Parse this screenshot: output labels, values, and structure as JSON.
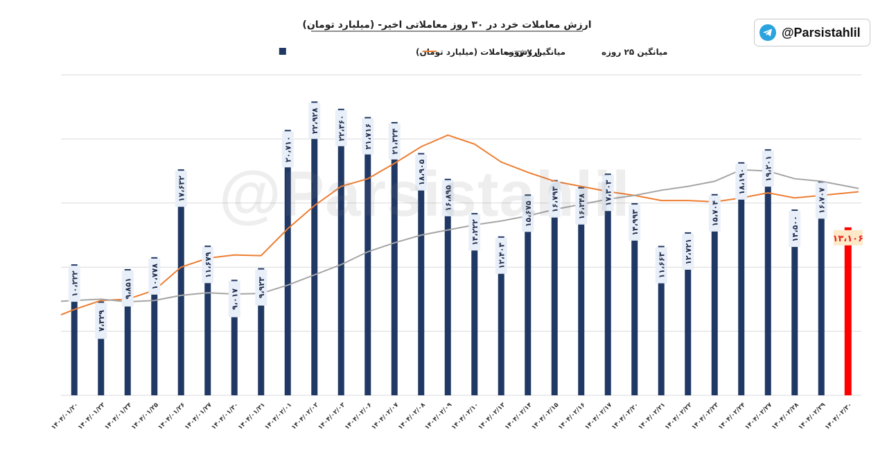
{
  "chart_data": {
    "type": "bar",
    "title": "ارزش معاملات خرد در ۳۰ روز معاملاتی اخیر- (میلیارد تومان)",
    "legend_position": "top-center",
    "grid": true,
    "ylim": [
      0,
      25000
    ],
    "categories": [
      "۱۴۰۴/۰۱/۲۰",
      "۱۴۰۴/۰۱/۲۳",
      "۱۴۰۴/۰۱/۲۴",
      "۱۴۰۴/۰۱/۲۵",
      "۱۴۰۴/۰۱/۲۶",
      "۱۴۰۴/۰۱/۲۷",
      "۱۴۰۴/۰۱/۳۰",
      "۱۴۰۴/۰۱/۳۱",
      "۱۴۰۴/۰۲/۰۱",
      "۱۴۰۴/۰۲/۰۲",
      "۱۴۰۴/۰۲/۰۳",
      "۱۴۰۴/۰۲/۰۶",
      "۱۴۰۴/۰۲/۰۷",
      "۱۴۰۴/۰۲/۰۸",
      "۱۴۰۴/۰۲/۰۹",
      "۱۴۰۴/۰۲/۱۰",
      "۱۴۰۴/۰۲/۱۳",
      "۱۴۰۴/۰۲/۱۴",
      "۱۴۰۴/۰۲/۱۵",
      "۱۴۰۴/۰۲/۱۶",
      "۱۴۰۴/۰۲/۱۷",
      "۱۴۰۴/۰۲/۲۰",
      "۱۴۰۴/۰۲/۲۱",
      "۱۴۰۴/۰۲/۲۲",
      "۱۴۰۴/۰۲/۲۳",
      "۱۴۰۴/۰۲/۲۴",
      "۱۴۰۴/۰۲/۲۷",
      "۱۴۰۴/۰۲/۲۸",
      "۱۴۰۴/۰۲/۲۹",
      "۱۴۰۴/۰۲/۳۰"
    ],
    "series": [
      {
        "name": "ارزش معاملات (میلیارد تومان)",
        "kind": "bar",
        "color": "#203864",
        "values": [
          10222,
          7329,
          9851,
          10778,
          17632,
          11679,
          9017,
          9923,
          20710,
          22928,
          22360,
          21716,
          21324,
          18905,
          16895,
          14222,
          12403,
          15675,
          16793,
          16248,
          17303,
          14993,
          11663,
          12721,
          15704,
          18190,
          19201,
          14500,
          16707,
          13106
        ],
        "labels": [
          "۱۰،۲۲۲",
          "۷،۳۲۹",
          "۹،۸۵۱",
          "۱۰،۷۷۸",
          "۱۷،۶۳۲",
          "۱۱،۶۷۹",
          "۹،۰۱۷",
          "۹،۹۲۳",
          "۲۰،۷۱۰",
          "۲۲،۹۲۸",
          "۲۲،۳۶۰",
          "۲۱،۷۱۶",
          "۲۱،۳۲۴",
          "۱۸،۹۰۵",
          "۱۶،۸۹۵",
          "۱۴،۲۲۲",
          "۱۲،۴۰۳",
          "۱۵،۶۷۵",
          "۱۶،۷۹۳",
          "۱۶،۲۴۸",
          "۱۷،۳۰۳",
          "۱۴،۹۹۳",
          "۱۱،۶۶۳",
          "۱۲،۷۲۱",
          "۱۵،۷۰۴",
          "۱۸،۱۹۰",
          "۱۹،۲۰۱",
          "۱۴،۵۰۰",
          "۱۶،۷۰۷",
          "۱۳،۱۰۶"
        ],
        "highlight_last": {
          "color": "#ff0000",
          "label_color": "#e8261e",
          "label_bg": "#fde9c7"
        }
      },
      {
        "name": "میانگین ۷ روزه",
        "kind": "line",
        "color": "#ed7d31",
        "values": [
          6700,
          7400,
          7500,
          8200,
          10000,
          10700,
          10950,
          10900,
          13000,
          14800,
          16300,
          16900,
          18100,
          19400,
          20300,
          19600,
          18200,
          17400,
          16700,
          16300,
          15900,
          15600,
          15200,
          15200,
          15100,
          15400,
          15800,
          15400,
          15600,
          15800
        ]
      },
      {
        "name": "میانگین ۲۵ روزه",
        "kind": "line",
        "color": "#a5a5a5",
        "values": [
          7400,
          7500,
          7300,
          7400,
          7800,
          8000,
          7900,
          7950,
          8600,
          9400,
          10200,
          11200,
          11900,
          12500,
          12900,
          13300,
          13600,
          14000,
          14500,
          14900,
          15300,
          15600,
          16000,
          16300,
          16700,
          17600,
          17500,
          16900,
          16700,
          16300
        ]
      }
    ]
  },
  "brand": {
    "handle": "@Parsistahlil",
    "icon": "telegram-icon",
    "icon_color": "#2aa3df"
  },
  "watermark": {
    "text": "@Parsistahlil"
  }
}
